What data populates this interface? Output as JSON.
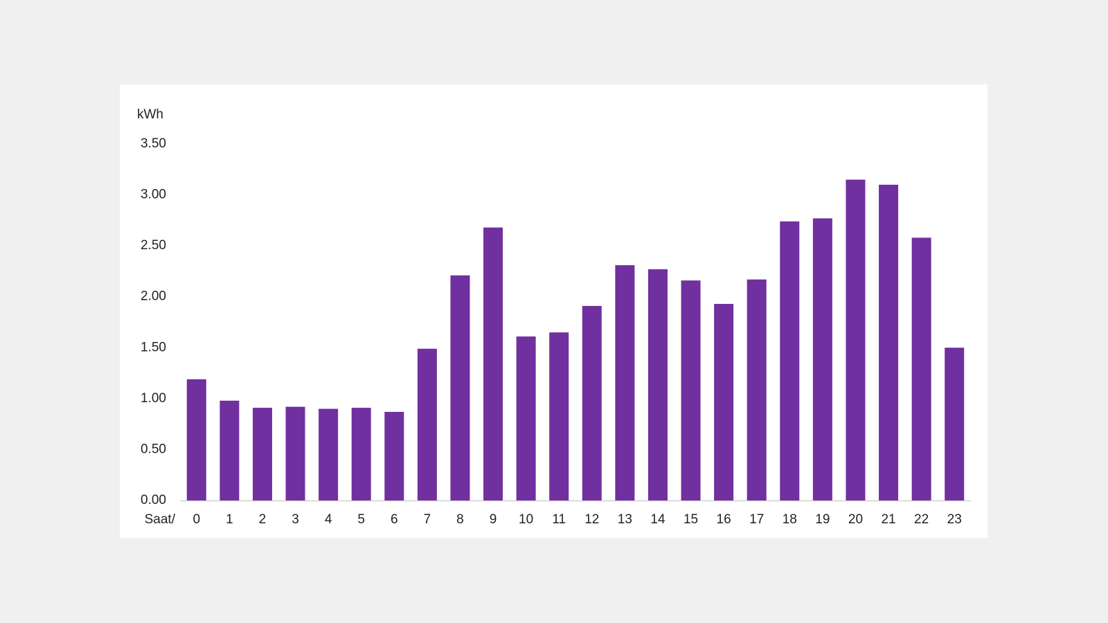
{
  "chart_data": {
    "type": "bar",
    "y_label": "kWh",
    "x_label": "Saat/",
    "categories": [
      "0",
      "1",
      "2",
      "3",
      "4",
      "5",
      "6",
      "7",
      "8",
      "9",
      "10",
      "11",
      "12",
      "13",
      "14",
      "15",
      "16",
      "17",
      "18",
      "19",
      "20",
      "21",
      "22",
      "23"
    ],
    "values": [
      1.19,
      0.98,
      0.91,
      0.92,
      0.9,
      0.91,
      0.87,
      1.49,
      2.21,
      2.68,
      1.61,
      1.65,
      1.91,
      2.31,
      2.27,
      2.16,
      1.93,
      2.17,
      2.74,
      2.77,
      3.15,
      3.1,
      2.58,
      1.5
    ],
    "color": "#7030a0",
    "ylim": [
      0,
      3.5
    ],
    "yticks": [
      {
        "value": 0,
        "label": "0.00"
      },
      {
        "value": 0.5,
        "label": "0.50"
      },
      {
        "value": 1,
        "label": "1.00"
      },
      {
        "value": 1.5,
        "label": "1.50"
      },
      {
        "value": 2,
        "label": "2.00"
      },
      {
        "value": 2.5,
        "label": "2.50"
      },
      {
        "value": 3,
        "label": "3.00"
      },
      {
        "value": 3.5,
        "label": "3.50"
      }
    ],
    "grid": false
  }
}
